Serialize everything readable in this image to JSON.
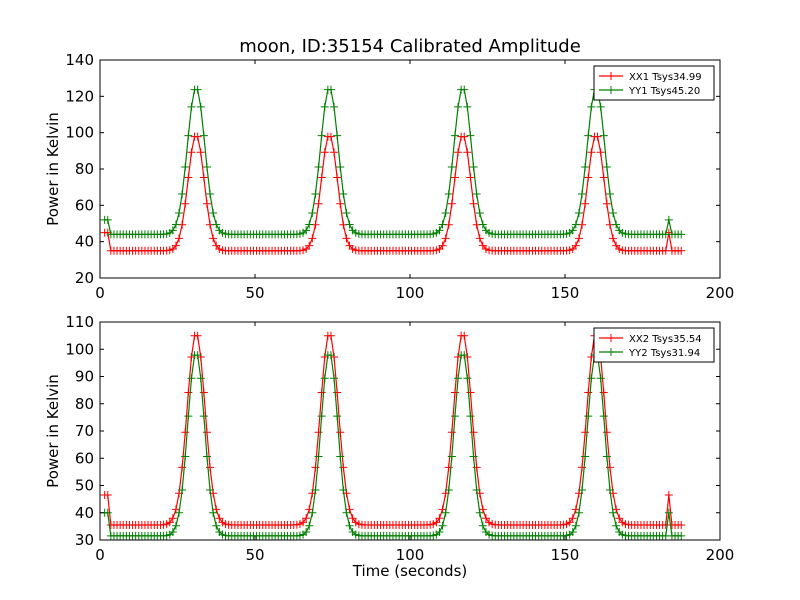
{
  "figure": {
    "title": "moon, ID:35154 Calibrated Amplitude",
    "xlabel": "Time (seconds)"
  },
  "chart_data": [
    {
      "type": "line",
      "title": "moon, ID:35154 Calibrated Amplitude",
      "xlabel": "",
      "ylabel": "Power in Kelvin",
      "xlim": [
        0,
        200
      ],
      "ylim": [
        20,
        140
      ],
      "xticks": [
        "0",
        "50",
        "100",
        "150",
        "200"
      ],
      "yticks": [
        "20",
        "40",
        "60",
        "80",
        "100",
        "120",
        "140"
      ],
      "grid": false,
      "legend_position": "top-right",
      "x": {
        "start": 1.5,
        "end": 188,
        "step": 1.0
      },
      "series": [
        {
          "name": "XX1 Tsys34.99",
          "color": "#ff0000",
          "marker": "+",
          "baseline": 34.99,
          "peaks": [
            {
              "x": 31,
              "peak": 99
            },
            {
              "x": 74,
              "peak": 99
            },
            {
              "x": 117,
              "peak": 99
            },
            {
              "x": 160,
              "peak": 99
            }
          ],
          "peak_width": 2.6,
          "spikes": [
            {
              "x0": 1.5,
              "x1": 2.5,
              "value": 45
            },
            {
              "x0": 183,
              "x1": 184,
              "value": 45
            }
          ]
        },
        {
          "name": "YY1 Tsys45.20",
          "color": "#008000",
          "marker": "+",
          "baseline": 44,
          "peaks": [
            {
              "x": 31,
              "peak": 125
            },
            {
              "x": 74,
              "peak": 125
            },
            {
              "x": 117,
              "peak": 125
            },
            {
              "x": 160,
              "peak": 125
            }
          ],
          "peak_width": 2.8,
          "spikes": [
            {
              "x0": 1.5,
              "x1": 2.5,
              "value": 52
            },
            {
              "x0": 183,
              "x1": 184,
              "value": 52
            }
          ]
        }
      ]
    },
    {
      "type": "line",
      "title": "",
      "xlabel": "Time (seconds)",
      "ylabel": "Power in Kelvin",
      "xlim": [
        0,
        200
      ],
      "ylim": [
        30,
        110
      ],
      "xticks": [
        "0",
        "50",
        "100",
        "150",
        "200"
      ],
      "yticks": [
        "30",
        "40",
        "50",
        "60",
        "70",
        "80",
        "90",
        "100",
        "110"
      ],
      "grid": false,
      "legend_position": "top-right",
      "x": {
        "start": 1.5,
        "end": 188,
        "step": 1.0
      },
      "series": [
        {
          "name": "XX2 Tsys35.54",
          "color": "#ff0000",
          "marker": "+",
          "baseline": 35.5,
          "peaks": [
            {
              "x": 31,
              "peak": 106
            },
            {
              "x": 74,
              "peak": 106
            },
            {
              "x": 117,
              "peak": 106
            },
            {
              "x": 160,
              "peak": 106
            }
          ],
          "peak_width": 2.9,
          "spikes": [
            {
              "x0": 1.5,
              "x1": 2.5,
              "value": 46.5
            },
            {
              "x0": 183,
              "x1": 184,
              "value": 46.5
            }
          ]
        },
        {
          "name": "YY2 Tsys31.94",
          "color": "#008000",
          "marker": "+",
          "baseline": 31.5,
          "peaks": [
            {
              "x": 31,
              "peak": 99
            },
            {
              "x": 74,
              "peak": 99
            },
            {
              "x": 117,
              "peak": 99
            },
            {
              "x": 160,
              "peak": 99
            }
          ],
          "peak_width": 2.7,
          "spikes": [
            {
              "x0": 1.5,
              "x1": 2.5,
              "value": 40
            },
            {
              "x0": 183,
              "x1": 184,
              "value": 40
            }
          ]
        }
      ]
    }
  ]
}
